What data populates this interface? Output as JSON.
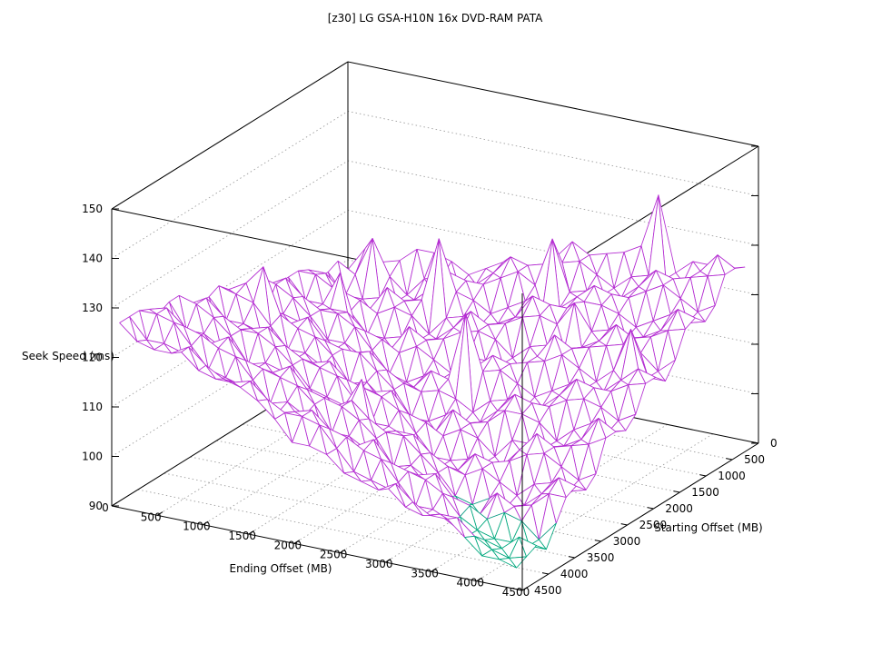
{
  "title": "[z30] LG GSA-H10N 16x DVD-RAM PATA",
  "chart_data": {
    "type": "surface3d",
    "title": "[z30] LG GSA-H10N 16x DVD-RAM PATA",
    "xlabel": "Ending Offset (MB)",
    "ylabel": "Starting Offset (MB)",
    "zlabel": "Seek Speed (ms)",
    "xlim": [
      0,
      4500
    ],
    "ylim": [
      0,
      4500
    ],
    "zlim": [
      90,
      150
    ],
    "x_ticks": [
      0,
      500,
      1000,
      1500,
      2000,
      2500,
      3000,
      3500,
      4000,
      4500
    ],
    "y_ticks": [
      0,
      500,
      1000,
      1500,
      2000,
      2500,
      3000,
      3500,
      4000,
      4500
    ],
    "z_ticks": [
      90,
      100,
      110,
      120,
      130,
      140,
      150
    ],
    "grid": true,
    "legend_position": "none",
    "colors": {
      "surface_line": "#b42dd2",
      "underside_line": "#00a87e",
      "box_line": "#000000",
      "grid_line": "#9f9f9f"
    },
    "low_region_threshold": 97,
    "grid_points": 24,
    "data_extent_mb": 4350,
    "z_values": [
      [
        108,
        113,
        111,
        112,
        115,
        115,
        114,
        112,
        114,
        116,
        116,
        116,
        119,
        123,
        121,
        122,
        123,
        125,
        136,
        121,
        124,
        124,
        124,
        125
      ],
      [
        111,
        109,
        117,
        110,
        107,
        111,
        112,
        111,
        112,
        115,
        119,
        118,
        119,
        120,
        121,
        119,
        117,
        120,
        121,
        121,
        121,
        124,
        128,
        126
      ],
      [
        110,
        106,
        106,
        107,
        107,
        108,
        111,
        115,
        114,
        114,
        116,
        118,
        116,
        126,
        116,
        117,
        117,
        117,
        120,
        124,
        123,
        124,
        125,
        126
      ],
      [
        110,
        108,
        106,
        106,
        111,
        109,
        110,
        123,
        113,
        112,
        110,
        112,
        114,
        113,
        114,
        117,
        120,
        119,
        119,
        121,
        123,
        121,
        119,
        121
      ],
      [
        113,
        113,
        110,
        109,
        107,
        109,
        108,
        105,
        109,
        110,
        109,
        110,
        112,
        117,
        116,
        116,
        118,
        118,
        117,
        115,
        117,
        119,
        118,
        119
      ],
      [
        114,
        114,
        112,
        108,
        104,
        104,
        105,
        105,
        106,
        109,
        113,
        111,
        112,
        114,
        115,
        114,
        119,
        114,
        115,
        114,
        115,
        117,
        122,
        121
      ],
      [
        114,
        110,
        110,
        117,
        106,
        104,
        104,
        109,
        107,
        108,
        110,
        111,
        110,
        107,
        110,
        111,
        111,
        112,
        114,
        118,
        116,
        117,
        119,
        120
      ],
      [
        114,
        111,
        110,
        111,
        111,
        108,
        107,
        105,
        107,
        105,
        103,
        107,
        107,
        107,
        107,
        110,
        115,
        113,
        114,
        115,
        116,
        115,
        112,
        115
      ],
      [
        115,
        117,
        114,
        112,
        112,
        110,
        106,
        102,
        101,
        103,
        103,
        103,
        107,
        110,
        109,
        110,
        111,
        113,
        111,
        109,
        112,
        121,
        112,
        112
      ],
      [
        118,
        117,
        115,
        112,
        108,
        108,
        106,
        103,
        102,
        102,
        106,
        105,
        119,
        108,
        109,
        107,
        105,
        107,
        109,
        109,
        109,
        112,
        115,
        114
      ],
      [
        118,
        113,
        113,
        112,
        109,
        108,
        108,
        109,
        106,
        104,
        103,
        104,
        103,
        101,
        104,
        105,
        104,
        105,
        108,
        112,
        111,
        111,
        113,
        114
      ],
      [
        117,
        115,
        114,
        113,
        115,
        111,
        110,
        110,
        107,
        104,
        99,
        99,
        101,
        100,
        101,
        104,
        108,
        107,
        107,
        109,
        110,
        109,
        107,
        109
      ],
      [
        119,
        121,
        125,
        116,
        114,
        113,
        110,
        105,
        106,
        103,
        101,
        100,
        99,
        104,
        102,
        103,
        106,
        106,
        105,
        102,
        105,
        107,
        106,
        107
      ],
      [
        121,
        120,
        119,
        115,
        111,
        111,
        109,
        107,
        105,
        106,
        107,
        103,
        102,
        100,
        102,
        101,
        98,
        102,
        102,
        102,
        103,
        105,
        110,
        108
      ],
      [
        120,
        116,
        116,
        115,
        113,
        111,
        111,
        112,
        109,
        108,
        107,
        105,
        101,
        97,
        97,
        98,
        98,
        98,
        102,
        106,
        104,
        105,
        106,
        108
      ],
      [
        120,
        117,
        116,
        117,
        118,
        115,
        113,
        112,
        111,
        107,
        103,
        103,
        101,
        99,
        97,
        97,
        101,
        100,
        101,
        103,
        104,
        102,
        100,
        102
      ],
      [
        121,
        123,
        120,
        118,
        118,
        116,
        113,
        109,
        108,
        107,
        113,
        103,
        104,
        104,
        101,
        99,
        98,
        100,
        98,
        96,
        99,
        100,
        99,
        100
      ],
      [
        124,
        123,
        121,
        118,
        113,
        114,
        113,
        110,
        109,
        108,
        110,
        107,
        105,
        105,
        102,
        99,
        95,
        94,
        96,
        95,
        96,
        99,
        103,
        102
      ],
      [
        124,
        119,
        119,
        117,
        115,
        114,
        114,
        116,
        112,
        111,
        110,
        108,
        105,
        100,
        101,
        99,
        96,
        95,
        94,
        99,
        97,
        98,
        101,
        101
      ],
      [
        123,
        121,
        119,
        119,
        121,
        117,
        116,
        115,
        114,
        111,
        106,
        106,
        104,
        102,
        101,
        101,
        102,
        98,
        97,
        95,
        97,
        96,
        93,
        97
      ],
      [
        125,
        126,
        123,
        122,
        120,
        119,
        115,
        111,
        112,
        110,
        108,
        106,
        106,
        108,
        104,
        103,
        102,
        100,
        96,
        94,
        93,
        93,
        93,
        93
      ],
      [
        126,
        126,
        125,
        121,
        117,
        116,
        115,
        113,
        111,
        112,
        113,
        110,
        109,
        107,
        106,
        102,
        98,
        98,
        96,
        94,
        94,
        93,
        96,
        95
      ],
      [
        126,
        122,
        122,
        121,
        118,
        117,
        117,
        118,
        115,
        113,
        113,
        112,
        108,
        104,
        103,
        102,
        99,
        98,
        99,
        99,
        96,
        94,
        93,
        94
      ],
      [
        126,
        123,
        122,
        122,
        124,
        121,
        119,
        118,
        116,
        113,
        109,
        109,
        108,
        105,
        104,
        103,
        105,
        102,
        100,
        100,
        97,
        94,
        94,
        93
      ]
    ]
  }
}
